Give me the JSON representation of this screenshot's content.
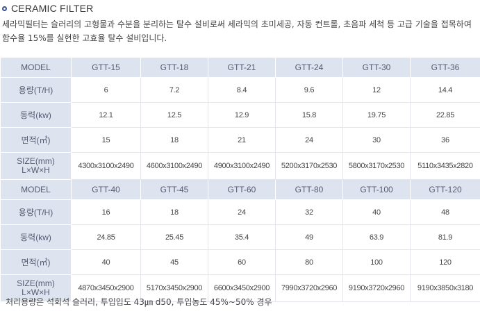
{
  "title": "CERAMIC FILTER",
  "description": "세라믹필터는 슬러리의 고형물과 수분을 분리하는 탈수 설비로써 세라믹의 초미세공, 자동 컨트롤, 초음파 세척 등 고급 기술을 접목하여 함수율 15%를 실현한 고효율 탈수 설비입니다.",
  "table1": {
    "model_label": "MODEL",
    "models": [
      "GTT-15",
      "GTT-18",
      "GTT-21",
      "GTT-24",
      "GTT-30",
      "GTT-36"
    ],
    "rows": [
      {
        "label": "용량(T/H)",
        "values": [
          "6",
          "7.2",
          "8.4",
          "9.6",
          "12",
          "14.4"
        ]
      },
      {
        "label": "동력(kw)",
        "values": [
          "12.1",
          "12.5",
          "12.9",
          "15.8",
          "19.75",
          "22.85"
        ]
      },
      {
        "label": "면적(㎡)",
        "values": [
          "15",
          "18",
          "21",
          "24",
          "30",
          "36"
        ]
      },
      {
        "label_line1": "SIZE(mm)",
        "label_line2": "L×W×H",
        "values": [
          "4300x3100x2490",
          "4600x3100x2490",
          "4900x3100x2490",
          "5200x3170x2530",
          "5800x3170x2530",
          "5110x3435x2820"
        ]
      }
    ]
  },
  "table2": {
    "model_label": "MODEL",
    "models": [
      "GTT-40",
      "GTT-45",
      "GTT-60",
      "GTT-80",
      "GTT-100",
      "GTT-120"
    ],
    "rows": [
      {
        "label": "용량(T/H)",
        "values": [
          "16",
          "18",
          "24",
          "32",
          "40",
          "48"
        ]
      },
      {
        "label": "동력(kw)",
        "values": [
          "24.85",
          "25.45",
          "35.4",
          "49",
          "63.9",
          "81.9"
        ]
      },
      {
        "label": "면적(㎡)",
        "values": [
          "40",
          "45",
          "60",
          "80",
          "100",
          "120"
        ]
      },
      {
        "label_line1": "SIZE(mm)",
        "label_line2": "L×W×H",
        "values": [
          "4870x3450x2900",
          "5170x3450x2900",
          "6600x3450x2900",
          "7990x3720x2960",
          "9190x3720x2960",
          "9190x3850x3180"
        ]
      }
    ]
  },
  "note": "처리용량은 석회석 슬러리, 투입입도 43㎛ d50, 투입농도 45%~50% 경우"
}
